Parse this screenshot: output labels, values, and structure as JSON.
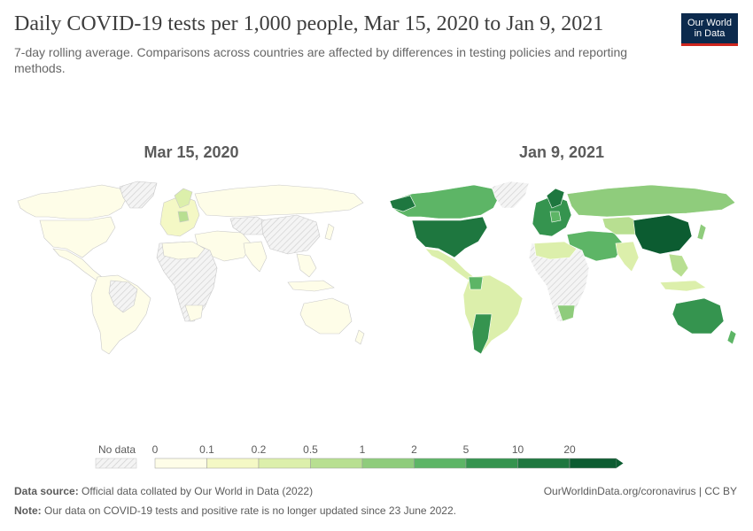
{
  "header": {
    "title": "Daily COVID-19 tests per 1,000 people, Mar 15, 2020 to Jan 9, 2021",
    "subtitle": "7-day rolling average. Comparisons across countries are affected by differences in testing policies and reporting methods."
  },
  "logo": {
    "line1": "Our World",
    "line2": "in Data"
  },
  "maps": {
    "left": {
      "date": "Mar 15, 2020"
    },
    "right": {
      "date": "Jan 9, 2021"
    }
  },
  "legend": {
    "no_data_label": "No data",
    "ticks": [
      "0",
      "0.1",
      "0.2",
      "0.5",
      "1",
      "2",
      "5",
      "10",
      "20"
    ],
    "colors": [
      "#fefde8",
      "#f4f8c5",
      "#dcefab",
      "#b8df91",
      "#8fcc7c",
      "#5db566",
      "#35944f",
      "#1e773f",
      "#0c5c31"
    ],
    "no_data_color": "#e6e6e6"
  },
  "footer": {
    "source_label": "Data source:",
    "source_text": "Official data collated by Our World in Data (2022)",
    "url": "OurWorldinData.org/coronavirus | CC BY",
    "note_label": "Note:",
    "note_text": "Our data on COVID-19 tests and positive rate is no longer updated since 23 June 2022."
  },
  "chart_data": {
    "type": "choropleth",
    "title": "Daily COVID-19 tests per 1,000 people, Mar 15, 2020 to Jan 9, 2021",
    "subtitle": "7-day rolling average. Comparisons across countries are affected by differences in testing policies and reporting methods.",
    "scale_bins": [
      0,
      0.1,
      0.2,
      0.5,
      1,
      2,
      5,
      10,
      20
    ],
    "panels": [
      {
        "date": "Mar 15, 2020",
        "regions": {
          "north_america": "0-0.1",
          "usa": "0-0.1",
          "greenland": "no data",
          "south_america": "0-0.1",
          "europe": "0-0.2",
          "russia": "0-0.1",
          "middle_east": "0-0.1",
          "africa": "no data",
          "south_asia": "0-0.1",
          "china": "no data",
          "east_asia": "0-0.1",
          "australia": "0-0.1"
        }
      },
      {
        "date": "Jan 9, 2021",
        "regions": {
          "north_america": "2-5",
          "usa": "10-20",
          "greenland": "no data",
          "south_america": "0.2-1",
          "europe": "2-10",
          "russia": "1-2",
          "middle_east": "1-5",
          "africa": "no data",
          "south_asia": "0.2-0.5",
          "china": "20+",
          "east_asia": "0.5-2",
          "australia": "2-5"
        }
      }
    ]
  }
}
